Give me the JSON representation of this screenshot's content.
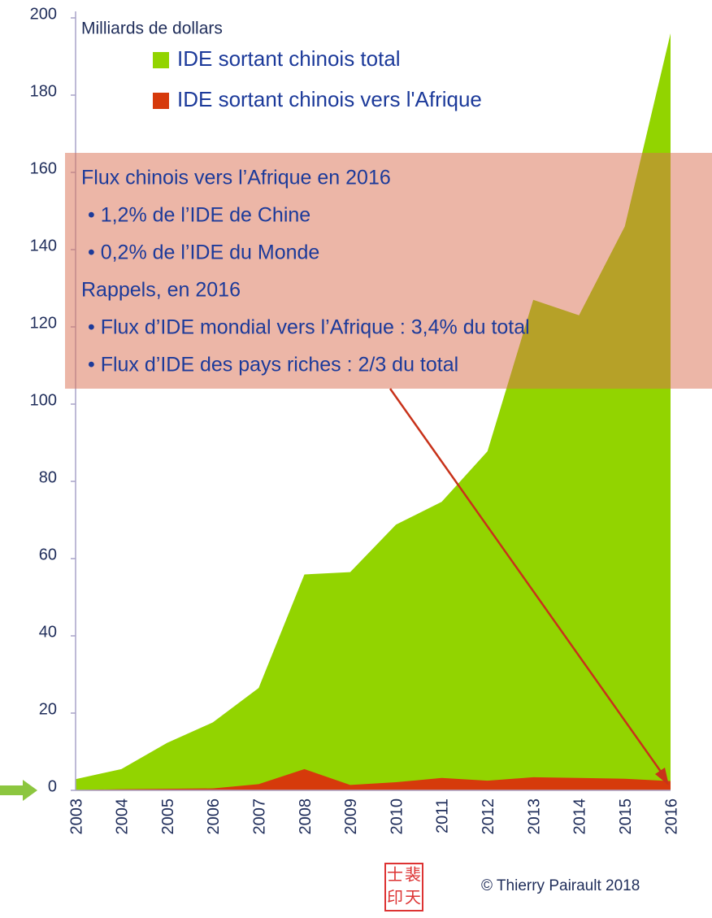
{
  "chart_data": {
    "type": "area",
    "y_axis_label": "Milliards de dollars",
    "categories": [
      "2003",
      "2004",
      "2005",
      "2006",
      "2007",
      "2008",
      "2009",
      "2010",
      "2011",
      "2012",
      "2013",
      "2014",
      "2015",
      "2016"
    ],
    "series": [
      {
        "name": "IDE sortant chinois total",
        "color": "#92d400",
        "values": [
          2.9,
          5.5,
          12.3,
          17.6,
          26.5,
          55.9,
          56.5,
          68.8,
          74.7,
          87.8,
          127,
          123,
          146,
          196
        ]
      },
      {
        "name": "IDE sortant chinois vers l'Afrique",
        "color": "#d63a0b",
        "values": [
          0.1,
          0.3,
          0.4,
          0.5,
          1.6,
          5.5,
          1.4,
          2.1,
          3.2,
          2.5,
          3.4,
          3.2,
          3.0,
          2.4
        ]
      }
    ],
    "ylim": [
      0,
      200
    ],
    "yticks": [
      0,
      20,
      40,
      60,
      80,
      100,
      120,
      140,
      160,
      180,
      200
    ],
    "annotation": [
      "Flux chinois vers l’Afrique en 2016",
      "• 1,2% de l’IDE de Chine",
      "• 0,2% de l’IDE du Monde",
      "Rappels, en 2016",
      "• Flux d’IDE mondial vers l’Afrique : 3,4% du total",
      "• Flux d’IDE des pays riches : 2/3 du total"
    ],
    "seal": [
      "士",
      "裴",
      "印",
      "天"
    ],
    "copyright": "© Thierry Pairault 2018"
  }
}
